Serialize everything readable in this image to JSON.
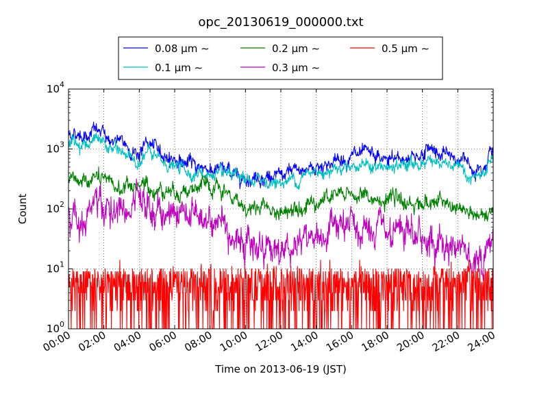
{
  "chart_data": {
    "type": "line",
    "title": "opc_20130619_000000.txt",
    "xlabel": "Time on 2013-06-19 (JST)",
    "ylabel": "Count",
    "y_scale": "log",
    "ylim": [
      1,
      10000
    ],
    "xlim": [
      "00:00",
      "24:00"
    ],
    "grid": true,
    "legend_position": "top-center",
    "x_tick_labels": [
      "00:00",
      "02:00",
      "04:00",
      "06:00",
      "08:00",
      "10:00",
      "12:00",
      "14:00",
      "16:00",
      "18:00",
      "20:00",
      "22:00",
      "24:00"
    ],
    "y_ticks": [
      {
        "value": 1,
        "base": "10",
        "exp": "0"
      },
      {
        "value": 10,
        "base": "10",
        "exp": "1"
      },
      {
        "value": 100,
        "base": "10",
        "exp": "2"
      },
      {
        "value": 1000,
        "base": "10",
        "exp": "3"
      },
      {
        "value": 10000,
        "base": "10",
        "exp": "4"
      }
    ],
    "x_hours": [
      0,
      1,
      1.5,
      2,
      3,
      4,
      4.5,
      5,
      6,
      7,
      8,
      9,
      10,
      11,
      12,
      13,
      14,
      15,
      16,
      17,
      18,
      19,
      20,
      20.7,
      21,
      22,
      22.5,
      23,
      23.5,
      24
    ],
    "series": [
      {
        "name": "0.08 μm ∼",
        "color": "#0000ff",
        "noise": 0.08,
        "values": [
          1800,
          1800,
          2100,
          1650,
          1200,
          850,
          1300,
          900,
          700,
          530,
          480,
          420,
          350,
          360,
          330,
          420,
          520,
          620,
          780,
          700,
          620,
          700,
          850,
          1100,
          780,
          700,
          600,
          480,
          700,
          1050
        ]
      },
      {
        "name": "0.1 μm ∼",
        "color": "#00bfbf",
        "noise": 0.07,
        "values": [
          1250,
          1250,
          1400,
          1150,
          850,
          640,
          900,
          650,
          500,
          400,
          370,
          330,
          280,
          300,
          270,
          330,
          420,
          500,
          560,
          520,
          450,
          520,
          600,
          720,
          540,
          460,
          380,
          310,
          400,
          560
        ]
      },
      {
        "name": "0.2 μm ∼",
        "color": "#008000",
        "noise": 0.09,
        "values": [
          280,
          290,
          340,
          260,
          220,
          250,
          230,
          220,
          210,
          220,
          210,
          160,
          110,
          110,
          80,
          130,
          145,
          160,
          175,
          150,
          130,
          125,
          130,
          130,
          120,
          100,
          90,
          75,
          60,
          110
        ]
      },
      {
        "name": "0.3 μm ∼",
        "color": "#bf00bf",
        "noise": 0.18,
        "values": [
          90,
          90,
          110,
          95,
          90,
          95,
          90,
          90,
          90,
          85,
          75,
          55,
          25,
          28,
          20,
          30,
          35,
          42,
          45,
          36,
          32,
          30,
          32,
          33,
          28,
          25,
          24,
          16,
          18,
          30
        ]
      },
      {
        "name": "0.5 μm ∼",
        "color": "#ff0000",
        "noise": 0,
        "values": [
          5,
          5,
          5,
          5,
          5,
          5,
          5,
          5,
          5,
          5,
          5,
          5,
          5,
          5,
          5,
          5,
          5,
          5,
          5,
          5,
          5,
          5,
          5,
          5,
          5,
          5,
          5,
          5,
          5,
          5
        ]
      }
    ],
    "legend_rows": [
      [
        {
          "label": "0.08 μm ∼",
          "color": "#0000ff"
        },
        {
          "label": "0.2 μm ∼",
          "color": "#008000"
        },
        {
          "label": "0.5 μm ∼",
          "color": "#ff0000"
        }
      ],
      [
        {
          "label": "0.1 μm ∼",
          "color": "#00bfbf"
        },
        {
          "label": "0.3 μm ∼",
          "color": "#bf00bf"
        }
      ]
    ]
  }
}
